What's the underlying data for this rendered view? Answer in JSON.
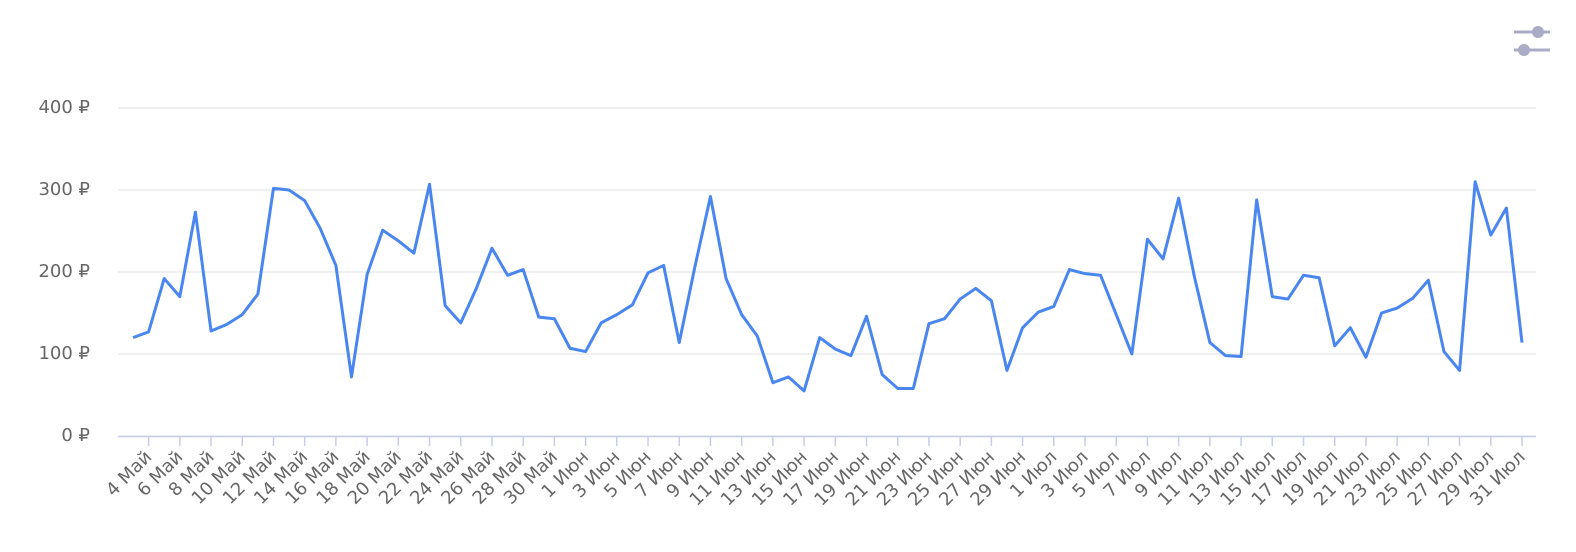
{
  "chart_data": {
    "type": "line",
    "categories": [
      null,
      "4 Май",
      null,
      "6 Май",
      null,
      "8 Май",
      null,
      "10 Май",
      null,
      "12 Май",
      null,
      "14 Май",
      null,
      "16 Май",
      null,
      "18 Май",
      null,
      "20 Май",
      null,
      "22 Май",
      null,
      "24 Май",
      null,
      "26 Май",
      null,
      "28 Май",
      null,
      "30 Май",
      null,
      "1 Июн",
      null,
      "3 Июн",
      null,
      "5 Июн",
      null,
      "7 Июн",
      null,
      "9 Июн",
      null,
      "11 Июн",
      null,
      "13 Июн",
      null,
      "15 Июн",
      null,
      "17 Июн",
      null,
      "19 Июн",
      null,
      "21 Июн",
      null,
      "23 Июн",
      null,
      "25 Июн",
      null,
      "27 Июн",
      null,
      "29 Июн",
      null,
      "1 Июл",
      null,
      "3 Июл",
      null,
      "5 Июл",
      null,
      "7 Июл",
      null,
      "9 Июл",
      null,
      "11 Июл",
      null,
      "13 Июл",
      null,
      "15 Июл",
      null,
      "17 Июл",
      null,
      "19 Июл",
      null,
      "21 Июл",
      null,
      "23 Июл",
      null,
      "25 Июл",
      null,
      "27 Июл",
      null,
      "29 Июл",
      null,
      "31 Июл"
    ],
    "series": [
      {
        "color": "#4a86ef",
        "values": [
          120,
          127,
          192,
          170,
          273,
          128,
          136,
          148,
          173,
          302,
          300,
          287,
          253,
          208,
          72,
          197,
          251,
          238,
          223,
          307,
          159,
          138,
          180,
          229,
          196,
          203,
          145,
          143,
          107,
          103,
          138,
          148,
          160,
          199,
          208,
          114,
          206,
          292,
          192,
          148,
          122,
          65,
          72,
          55,
          120,
          106,
          98,
          146,
          75,
          58,
          58,
          137,
          143,
          167,
          180,
          165,
          80,
          132,
          151,
          158,
          203,
          198,
          196,
          148,
          100,
          240,
          216,
          290,
          195,
          114,
          98,
          97,
          288,
          170,
          167,
          196,
          193,
          110,
          132,
          96,
          150,
          156,
          168,
          190,
          103,
          80,
          310,
          245,
          278,
          114
        ]
      }
    ],
    "ylim": [
      0,
      400
    ],
    "yticks": [
      {
        "value": 0,
        "label": "0 ₽"
      },
      {
        "value": 100,
        "label": "100 ₽"
      },
      {
        "value": 200,
        "label": "200 ₽"
      },
      {
        "value": 300,
        "label": "300 ₽"
      },
      {
        "value": 400,
        "label": "400 ₽"
      }
    ],
    "grid": true
  }
}
